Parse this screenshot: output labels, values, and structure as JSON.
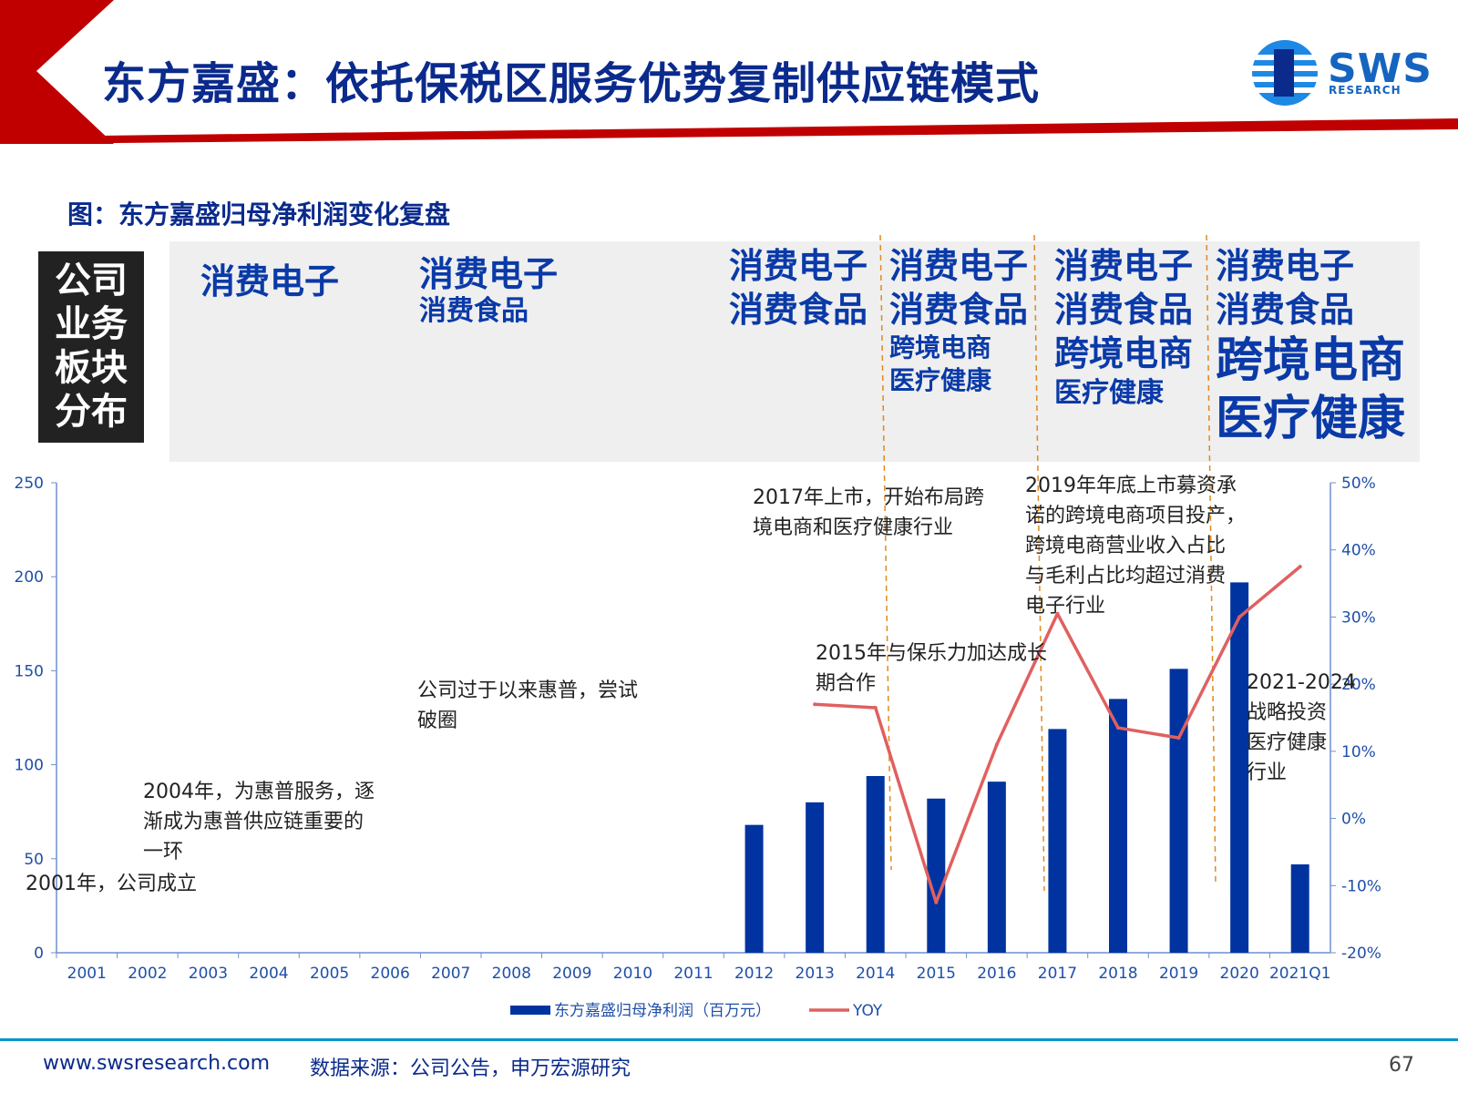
{
  "header": {
    "title": "东方嘉盛：依托保税区服务优势复制供应链模式",
    "logo_text": "SWS",
    "logo_sub": "RESEARCH",
    "accent_red": "#c00000",
    "brand_blue": "#0a2a8c"
  },
  "figure": {
    "caption": "图：东方嘉盛归母净利润变化复盘",
    "biz_label_lines": [
      "公司",
      "业务",
      "板块",
      "分布"
    ],
    "segments": [
      [
        "消费电子"
      ],
      [
        "消费电子",
        "消费食品"
      ],
      [
        "消费电子",
        "消费食品"
      ],
      [
        "消费电子",
        "消费食品",
        "跨境电商",
        "医疗健康"
      ],
      [
        "消费电子",
        "消费食品",
        "跨境电商",
        "医疗健康"
      ],
      [
        "消费电子",
        "消费食品",
        "跨境电商",
        "医疗健康"
      ]
    ]
  },
  "annotations": {
    "a2001": "2001年，公司成立",
    "a2004": [
      "2004年，为惠普服务，逐",
      "渐成为惠普供应链重要的",
      "一环"
    ],
    "a2007": [
      "公司过于以来惠普，尝试",
      "破圈"
    ],
    "a2015": [
      "2015年与保乐力加达成长",
      "期合作"
    ],
    "a2017": [
      "2017年上市，开始布局跨",
      "境电商和医疗健康行业"
    ],
    "a2019": [
      "2019年年底上市募资承",
      "诺的跨境电商项目投产，",
      "跨境电商营业收入占比",
      "与毛利占比均超过消费",
      "电子行业"
    ],
    "a2021": [
      "2021-2024",
      "战略投资",
      "医疗健康",
      "行业"
    ]
  },
  "chart_data": {
    "type": "bar",
    "categories": [
      "2001",
      "2002",
      "2003",
      "2004",
      "2005",
      "2006",
      "2007",
      "2008",
      "2009",
      "2010",
      "2011",
      "2012",
      "2013",
      "2014",
      "2015",
      "2016",
      "2017",
      "2018",
      "2019",
      "2020",
      "2021Q1"
    ],
    "series": [
      {
        "name": "东方嘉盛归母净利润（百万元）",
        "type": "bar",
        "axis": "left",
        "color": "#0033a0",
        "values": [
          null,
          null,
          null,
          null,
          null,
          null,
          null,
          null,
          null,
          null,
          null,
          68,
          80,
          94,
          82,
          91,
          119,
          135,
          151,
          197,
          47
        ]
      },
      {
        "name": "YOY",
        "type": "line",
        "axis": "right",
        "color": "#e06060",
        "values": [
          null,
          null,
          null,
          null,
          null,
          null,
          null,
          null,
          null,
          null,
          null,
          null,
          17,
          16.5,
          -12.5,
          11,
          30.5,
          13.5,
          12,
          30,
          37.5
        ]
      }
    ],
    "left_axis": {
      "min": 0,
      "max": 250,
      "ticks": [
        0,
        50,
        100,
        150,
        200,
        250
      ]
    },
    "right_axis": {
      "min": -20,
      "max": 50,
      "ticks": [
        "-20%",
        "-10%",
        "0%",
        "10%",
        "20%",
        "30%",
        "40%",
        "50%"
      ]
    },
    "legend_position": "bottom"
  },
  "footer": {
    "url": "www.swsresearch.com",
    "source": "数据来源：公司公告，申万宏源研究",
    "page": "67"
  }
}
